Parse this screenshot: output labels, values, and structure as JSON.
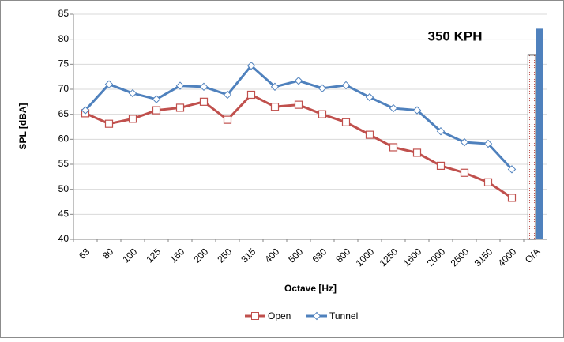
{
  "chart_data": {
    "type": "line",
    "annotation": "350 KPH",
    "x_label": "Octave [Hz]",
    "y_label": "SPL [dBA]",
    "categories": [
      "63",
      "80",
      "100",
      "125",
      "160",
      "200",
      "250",
      "315",
      "400",
      "500",
      "630",
      "800",
      "1000",
      "1250",
      "1600",
      "2000",
      "2500",
      "3150",
      "4000",
      "O/A"
    ],
    "last_category_as_bar": true,
    "series": [
      {
        "name": "Open",
        "color": "#c0504d",
        "marker": "square",
        "values": [
          65.2,
          63.1,
          64.1,
          65.8,
          66.3,
          67.5,
          63.9,
          68.9,
          66.5,
          66.9,
          65.0,
          63.4,
          60.9,
          58.4,
          57.3,
          54.7,
          53.3,
          51.4,
          48.3,
          76.8
        ]
      },
      {
        "name": "Tunnel",
        "color": "#4f81bd",
        "marker": "diamond",
        "values": [
          65.8,
          71.0,
          69.2,
          68.0,
          70.7,
          70.5,
          68.9,
          74.7,
          70.5,
          71.7,
          70.2,
          70.8,
          68.4,
          66.2,
          65.8,
          61.6,
          59.4,
          59.1,
          54.0,
          82.1
        ]
      }
    ],
    "ylim": [
      40,
      85
    ],
    "yticks": [
      40,
      45,
      50,
      55,
      60,
      65,
      70,
      75,
      80,
      85
    ],
    "grid": true,
    "legend": "bottom"
  }
}
